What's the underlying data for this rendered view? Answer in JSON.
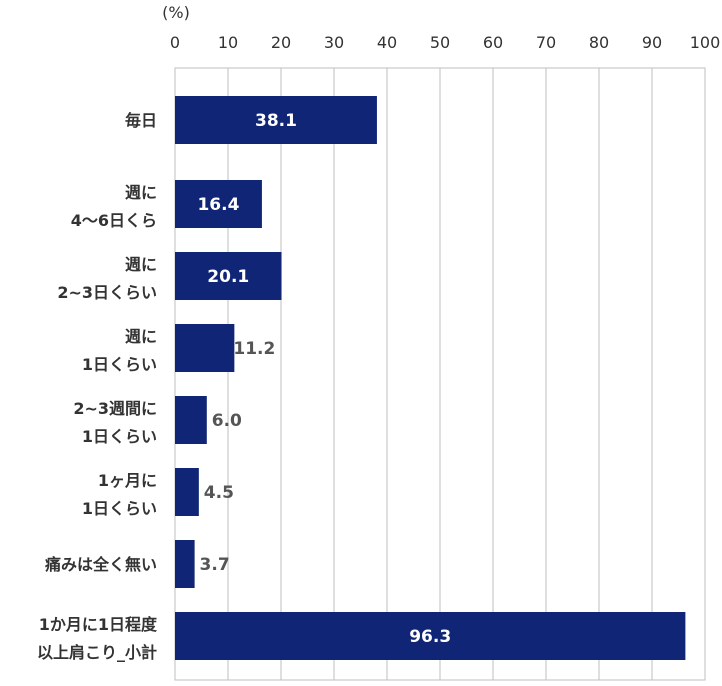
{
  "chart_data": {
    "type": "bar",
    "orientation": "horizontal",
    "unit_label": "(%)",
    "xlim": [
      0,
      100
    ],
    "x_ticks": [
      0,
      10,
      20,
      30,
      40,
      50,
      60,
      70,
      80,
      90,
      100
    ],
    "grid": true,
    "bar_color": "#102575",
    "categories": [
      [
        "毎日"
      ],
      [
        "週に",
        "4〜6日くら"
      ],
      [
        "週に",
        "2~3日くらい"
      ],
      [
        "週に",
        "1日くらい"
      ],
      [
        "2~3週間に",
        "1日くらい"
      ],
      [
        "1ヶ月に",
        "1日くらい"
      ],
      [
        "痛みは全く無い"
      ],
      [
        "1か月に1日程度",
        "以上肩こり_小計"
      ]
    ],
    "values": [
      38.1,
      16.4,
      20.1,
      11.2,
      6.0,
      4.5,
      3.7,
      96.3
    ],
    "value_labels": [
      "38.1",
      "16.4",
      "20.1",
      "11.2",
      "6.0",
      "4.5",
      "3.7",
      "96.3"
    ]
  }
}
